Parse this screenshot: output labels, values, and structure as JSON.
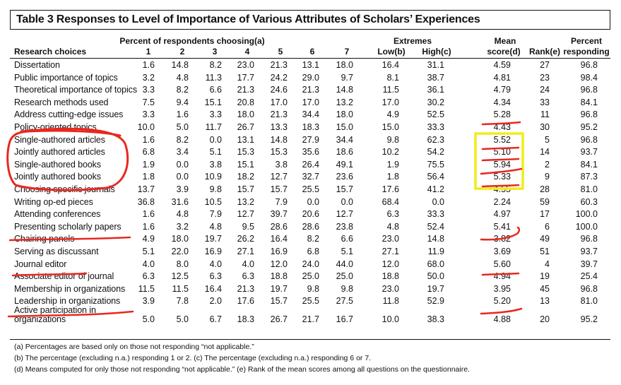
{
  "table": {
    "title": "Table 3   Responses to Level of Importance of Various Attributes of Scholars’ Experiences",
    "header": {
      "group_percent": "Percent of respondents choosing(a)",
      "group_extremes": "Extremes",
      "research_choices": "Research choices",
      "scale": [
        "1",
        "2",
        "3",
        "4",
        "5",
        "6",
        "7"
      ],
      "low": "Low(b)",
      "high": "High(c)",
      "mean_top": "Mean",
      "mean_bottom": "score(d)",
      "rank": "Rank(e)",
      "percent_top": "Percent",
      "percent_bottom": "responding"
    },
    "rows": [
      {
        "label": "Dissertation",
        "cells": [
          "1.6",
          "14.8",
          "8.2",
          "23.0",
          "21.3",
          "13.1",
          "18.0",
          "16.4",
          "31.1",
          "4.59",
          "27",
          "96.8"
        ]
      },
      {
        "label": "Public importance of topics",
        "cells": [
          "3.2",
          "4.8",
          "11.3",
          "17.7",
          "24.2",
          "29.0",
          "9.7",
          "8.1",
          "38.7",
          "4.81",
          "23",
          "98.4"
        ]
      },
      {
        "label": "Theoretical importance of topics",
        "cells": [
          "3.3",
          "8.2",
          "6.6",
          "21.3",
          "24.6",
          "21.3",
          "14.8",
          "11.5",
          "36.1",
          "4.79",
          "24",
          "96.8"
        ]
      },
      {
        "label": "Research methods used",
        "cells": [
          "7.5",
          "9.4",
          "15.1",
          "20.8",
          "17.0",
          "17.0",
          "13.2",
          "17.0",
          "30.2",
          "4.34",
          "33",
          "84.1"
        ]
      },
      {
        "label": "Address cutting-edge issues",
        "cells": [
          "3.3",
          "1.6",
          "3.3",
          "18.0",
          "21.3",
          "34.4",
          "18.0",
          "4.9",
          "52.5",
          "5.28",
          "11",
          "96.8"
        ]
      },
      {
        "label": "Policy-oriented topics",
        "cells": [
          "10.0",
          "5.0",
          "11.7",
          "26.7",
          "13.3",
          "18.3",
          "15.0",
          "15.0",
          "33.3",
          "4.43",
          "30",
          "95.2"
        ]
      },
      {
        "label": "Single-authored articles",
        "cells": [
          "1.6",
          "8.2",
          "0.0",
          "13.1",
          "14.8",
          "27.9",
          "34.4",
          "9.8",
          "62.3",
          "5.52",
          "5",
          "96.8"
        ]
      },
      {
        "label": "Jointly authored articles",
        "cells": [
          "6.8",
          "3.4",
          "5.1",
          "15.3",
          "15.3",
          "35.6",
          "18.6",
          "10.2",
          "54.2",
          "5.10",
          "14",
          "93.7"
        ]
      },
      {
        "label": "Single-authored books",
        "cells": [
          "1.9",
          "0.0",
          "3.8",
          "15.1",
          "3.8",
          "26.4",
          "49.1",
          "1.9",
          "75.5",
          "5.94",
          "2",
          "84.1"
        ]
      },
      {
        "label": "Jointly authored books",
        "cells": [
          "1.8",
          "0.0",
          "10.9",
          "18.2",
          "12.7",
          "32.7",
          "23.6",
          "1.8",
          "56.4",
          "5.33",
          "9",
          "87.3"
        ]
      },
      {
        "label": "Choosing specific journals",
        "cells": [
          "13.7",
          "3.9",
          "9.8",
          "15.7",
          "15.7",
          "25.5",
          "15.7",
          "17.6",
          "41.2",
          "4.55",
          "28",
          "81.0"
        ]
      },
      {
        "label": "Writing op-ed pieces",
        "cells": [
          "36.8",
          "31.6",
          "10.5",
          "13.2",
          "7.9",
          "0.0",
          "0.0",
          "68.4",
          "0.0",
          "2.24",
          "59",
          "60.3"
        ]
      },
      {
        "label": "Attending conferences",
        "cells": [
          "1.6",
          "4.8",
          "7.9",
          "12.7",
          "39.7",
          "20.6",
          "12.7",
          "6.3",
          "33.3",
          "4.97",
          "17",
          "100.0"
        ]
      },
      {
        "label": "Presenting scholarly papers",
        "cells": [
          "1.6",
          "3.2",
          "4.8",
          "9.5",
          "28.6",
          "28.6",
          "23.8",
          "4.8",
          "52.4",
          "5.41",
          "6",
          "100.0"
        ]
      },
      {
        "label": "Chairing panels",
        "cells": [
          "4.9",
          "18.0",
          "19.7",
          "26.2",
          "16.4",
          "8.2",
          "6.6",
          "23.0",
          "14.8",
          "3.82",
          "49",
          "96.8"
        ]
      },
      {
        "label": "Serving as discussant",
        "cells": [
          "5.1",
          "22.0",
          "16.9",
          "27.1",
          "16.9",
          "6.8",
          "5.1",
          "27.1",
          "11.9",
          "3.69",
          "51",
          "93.7"
        ]
      },
      {
        "label": "Journal editor",
        "cells": [
          "4.0",
          "8.0",
          "4.0",
          "4.0",
          "12.0",
          "24.0",
          "44.0",
          "12.0",
          "68.0",
          "5.60",
          "4",
          "39.7"
        ]
      },
      {
        "label": "Associate editor of journal",
        "cells": [
          "6.3",
          "12.5",
          "6.3",
          "6.3",
          "18.8",
          "25.0",
          "25.0",
          "18.8",
          "50.0",
          "4.94",
          "19",
          "25.4"
        ]
      },
      {
        "label": "Membership in organizations",
        "cells": [
          "11.5",
          "11.5",
          "16.4",
          "21.3",
          "19.7",
          "9.8",
          "9.8",
          "23.0",
          "19.7",
          "3.95",
          "45",
          "96.8"
        ]
      },
      {
        "label": "Leadership in organizations",
        "cells": [
          "3.9",
          "7.8",
          "2.0",
          "17.6",
          "15.7",
          "25.5",
          "27.5",
          "11.8",
          "52.9",
          "5.20",
          "13",
          "81.0"
        ]
      },
      {
        "label": "Active participation in",
        "label2": "organizations",
        "cells": [
          "5.0",
          "5.0",
          "6.7",
          "18.3",
          "26.7",
          "21.7",
          "16.7",
          "10.0",
          "38.3",
          "4.88",
          "20",
          "95.2"
        ]
      }
    ],
    "footnotes": [
      "(a) Percentages are based only on those not responding “not applicable.”",
      "(b) The percentage (excluding n.a.) responding 1 or 2. (c) The percentage (excluding n.a.) responding 6 or 7.",
      "(d) Means computed for only those not responding “not applicable.” (e) Rank of the mean scores among all questions on the questionnaire."
    ]
  },
  "annotations": {
    "ink_color": "#e8281e",
    "highlight_color": "#f2ec1b"
  }
}
